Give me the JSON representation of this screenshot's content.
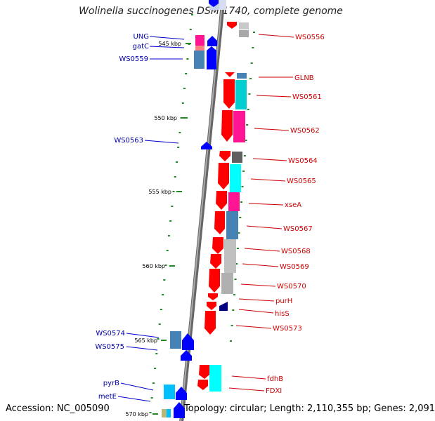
{
  "title": "Wolinella succinogenes DSM 1740, complete genome",
  "footer": {
    "accession": "Accession: NC_005090",
    "summary": "Topology: circular; Length: 2,110,355 bp; Genes: 2,091"
  },
  "ticks": [
    {
      "label": "545 kbp"
    },
    {
      "label": "550 kbp"
    },
    {
      "label": "555 kbp"
    },
    {
      "label": "560 kbp"
    },
    {
      "label": "565 kbp"
    },
    {
      "label": "570 kbp"
    }
  ],
  "left_genes": [
    {
      "label": "UNG"
    },
    {
      "label": "gatC"
    },
    {
      "label": "WS0559"
    },
    {
      "label": "WS0563"
    },
    {
      "label": "WS0574"
    },
    {
      "label": "WS0575"
    },
    {
      "label": "pyrB"
    },
    {
      "label": "metE"
    }
  ],
  "right_genes": [
    {
      "label": "WS0556"
    },
    {
      "label": "GLNB"
    },
    {
      "label": "WS0561"
    },
    {
      "label": "WS0562"
    },
    {
      "label": "WS0564"
    },
    {
      "label": "WS0565"
    },
    {
      "label": "xseA"
    },
    {
      "label": "WS0567"
    },
    {
      "label": "WS0568"
    },
    {
      "label": "WS0569"
    },
    {
      "label": "WS0570"
    },
    {
      "label": "purH"
    },
    {
      "label": "hisS"
    },
    {
      "label": "WS0573"
    },
    {
      "label": "fdhB"
    },
    {
      "label": "FDXI"
    }
  ],
  "colors": {
    "forward_strand": "#ff0000",
    "reverse_strand": "#0000ff",
    "forward_label": "#cc0000",
    "reverse_label": "#0000aa",
    "tick": "#228822",
    "backbone": "#808080"
  }
}
